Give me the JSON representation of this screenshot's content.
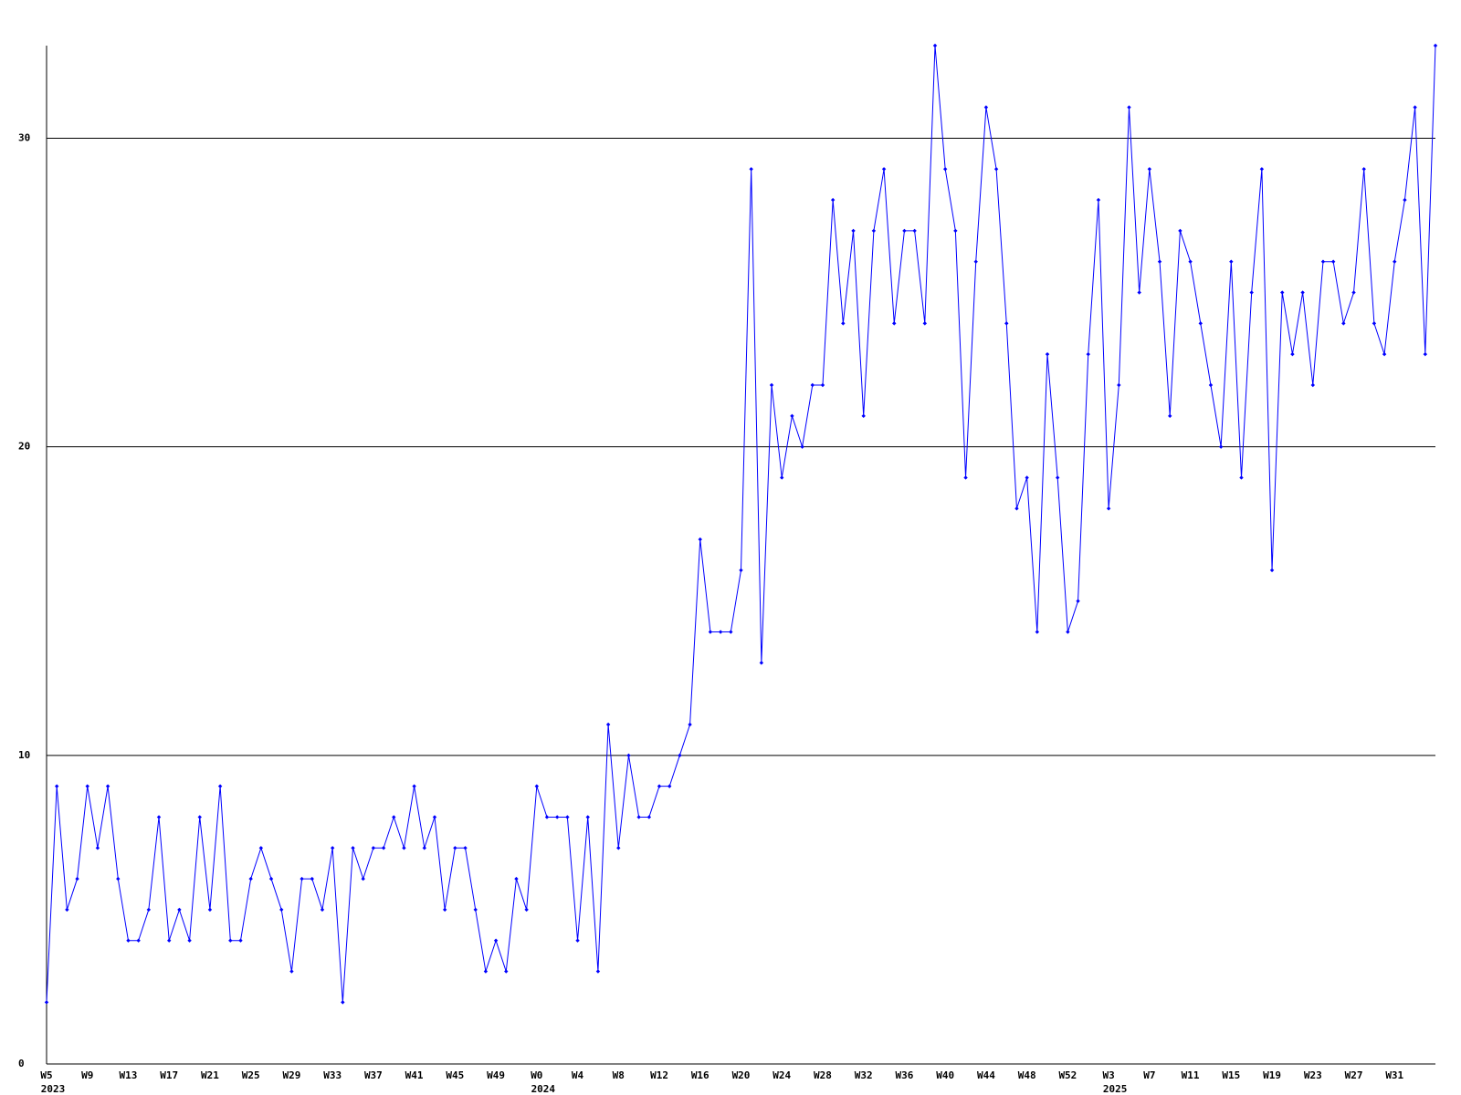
{
  "chart_data": {
    "type": "line",
    "categories": [
      "W5",
      null,
      null,
      null,
      "W9",
      null,
      null,
      null,
      "W13",
      null,
      null,
      null,
      "W17",
      null,
      null,
      null,
      "W21",
      null,
      null,
      null,
      "W25",
      null,
      null,
      null,
      "W29",
      null,
      null,
      null,
      "W33",
      null,
      null,
      null,
      "W37",
      null,
      null,
      null,
      "W41",
      null,
      null,
      null,
      "W45",
      null,
      null,
      null,
      "W49",
      null,
      null,
      null,
      "W0",
      null,
      null,
      null,
      "W4",
      null,
      null,
      null,
      "W8",
      null,
      null,
      null,
      "W12",
      null,
      null,
      null,
      "W16",
      null,
      null,
      null,
      "W20",
      null,
      null,
      null,
      "W24",
      null,
      null,
      null,
      "W28",
      null,
      null,
      null,
      "W32",
      null,
      null,
      null,
      "W36",
      null,
      null,
      null,
      "W40",
      null,
      null,
      null,
      "W44",
      null,
      null,
      null,
      "W48",
      null,
      null,
      null,
      "W52",
      null,
      null,
      null,
      "W3",
      null,
      null,
      null,
      "W7",
      null,
      null,
      null,
      "W11",
      null,
      null,
      null,
      "W15",
      null,
      null,
      null,
      "W19",
      null,
      null,
      null,
      "W23",
      null,
      null,
      null,
      "W27",
      null,
      null,
      null,
      "W31",
      null,
      null,
      null,
      null
    ],
    "category_years": [
      "2023",
      null,
      null,
      null,
      null,
      null,
      null,
      null,
      null,
      null,
      null,
      null,
      null,
      null,
      null,
      null,
      null,
      null,
      null,
      null,
      null,
      null,
      null,
      null,
      null,
      null,
      null,
      null,
      null,
      null,
      null,
      null,
      null,
      null,
      null,
      null,
      null,
      null,
      null,
      null,
      null,
      null,
      null,
      null,
      null,
      null,
      null,
      null,
      "2024",
      null,
      null,
      null,
      null,
      null,
      null,
      null,
      null,
      null,
      null,
      null,
      null,
      null,
      null,
      null,
      null,
      null,
      null,
      null,
      null,
      null,
      null,
      null,
      null,
      null,
      null,
      null,
      null,
      null,
      null,
      null,
      null,
      null,
      null,
      null,
      null,
      null,
      null,
      null,
      null,
      null,
      null,
      null,
      null,
      null,
      null,
      null,
      null,
      null,
      null,
      null,
      null,
      null,
      null,
      null,
      "2025",
      null,
      null,
      null,
      null,
      null,
      null,
      null,
      null,
      null,
      null,
      null,
      null,
      null,
      null,
      null,
      null,
      null,
      null,
      null,
      null,
      null,
      null,
      null,
      null,
      null,
      null,
      null,
      null,
      null,
      null,
      null
    ],
    "series": [
      {
        "color": "#0000ff",
        "values": [
          2,
          9,
          5,
          6,
          9,
          7,
          9,
          6,
          4,
          4,
          5,
          8,
          4,
          5,
          4,
          8,
          5,
          9,
          4,
          4,
          6,
          7,
          6,
          5,
          3,
          6,
          6,
          5,
          7,
          2,
          7,
          6,
          7,
          7,
          8,
          7,
          9,
          7,
          8,
          5,
          7,
          7,
          5,
          3,
          4,
          3,
          6,
          5,
          9,
          8,
          8,
          8,
          4,
          8,
          3,
          11,
          7,
          10,
          8,
          8,
          9,
          9,
          10,
          11,
          17,
          14,
          14,
          14,
          16,
          29,
          13,
          22,
          19,
          21,
          20,
          22,
          22,
          28,
          24,
          27,
          21,
          27,
          29,
          24,
          27,
          27,
          24,
          33,
          29,
          27,
          19,
          26,
          31,
          29,
          24,
          18,
          19,
          14,
          23,
          19,
          14,
          15,
          23,
          28,
          18,
          22,
          31,
          25,
          29,
          26,
          21,
          27,
          26,
          24,
          22,
          20,
          26,
          19,
          25,
          29,
          16,
          25,
          23,
          25,
          22,
          26,
          26,
          24,
          25,
          29,
          24,
          23,
          26,
          28,
          31,
          23,
          33
        ]
      }
    ],
    "ylim": [
      0,
      33
    ],
    "yticks": [
      0,
      10,
      20,
      30
    ],
    "grid": true
  }
}
